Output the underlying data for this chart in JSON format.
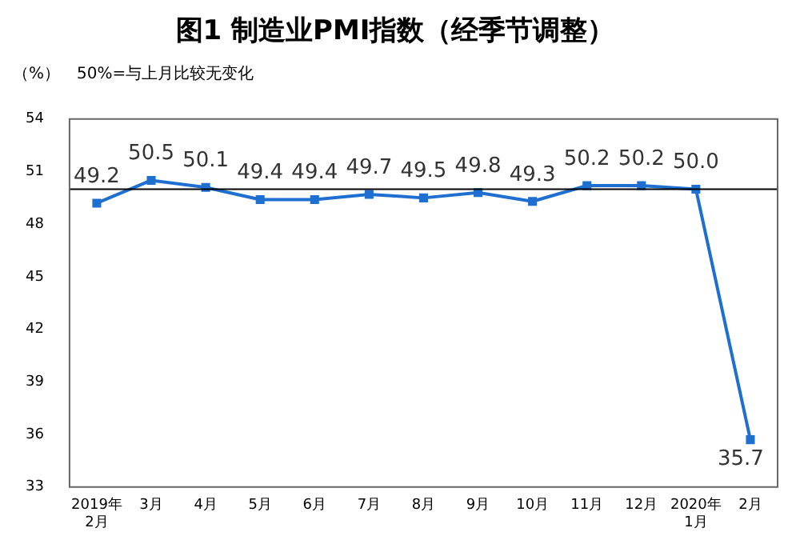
{
  "chart_data": {
    "type": "line",
    "title": "图1 制造业PMI指数（经季节调整）",
    "ylabel": "（%）",
    "annotations": [
      "50%=与上月比较无变化"
    ],
    "categories": [
      "2019年\n2月",
      "3月",
      "4月",
      "5月",
      "6月",
      "7月",
      "8月",
      "9月",
      "10月",
      "11月",
      "12月",
      "2020年\n1月",
      "2月"
    ],
    "series": [
      {
        "color": "#1f6fd0",
        "values": [
          49.2,
          50.5,
          50.1,
          49.4,
          49.4,
          49.7,
          49.5,
          49.8,
          49.3,
          50.2,
          50.2,
          50.0,
          35.7
        ],
        "value_labels": [
          "49.2",
          "50.5",
          "50.1",
          "49.4",
          "49.4",
          "49.7",
          "49.5",
          "49.8",
          "49.3",
          "50.2",
          "50.2",
          "50.0",
          "35.7"
        ]
      }
    ],
    "ylim": [
      33,
      54
    ],
    "yticks": [
      33,
      36,
      39,
      42,
      45,
      48,
      51,
      54
    ],
    "ref_lines": [
      {
        "axis": "y",
        "value": 50,
        "color": "#000000"
      }
    ],
    "grid": false,
    "legend": false,
    "marker": "square",
    "line_style": "solid"
  }
}
